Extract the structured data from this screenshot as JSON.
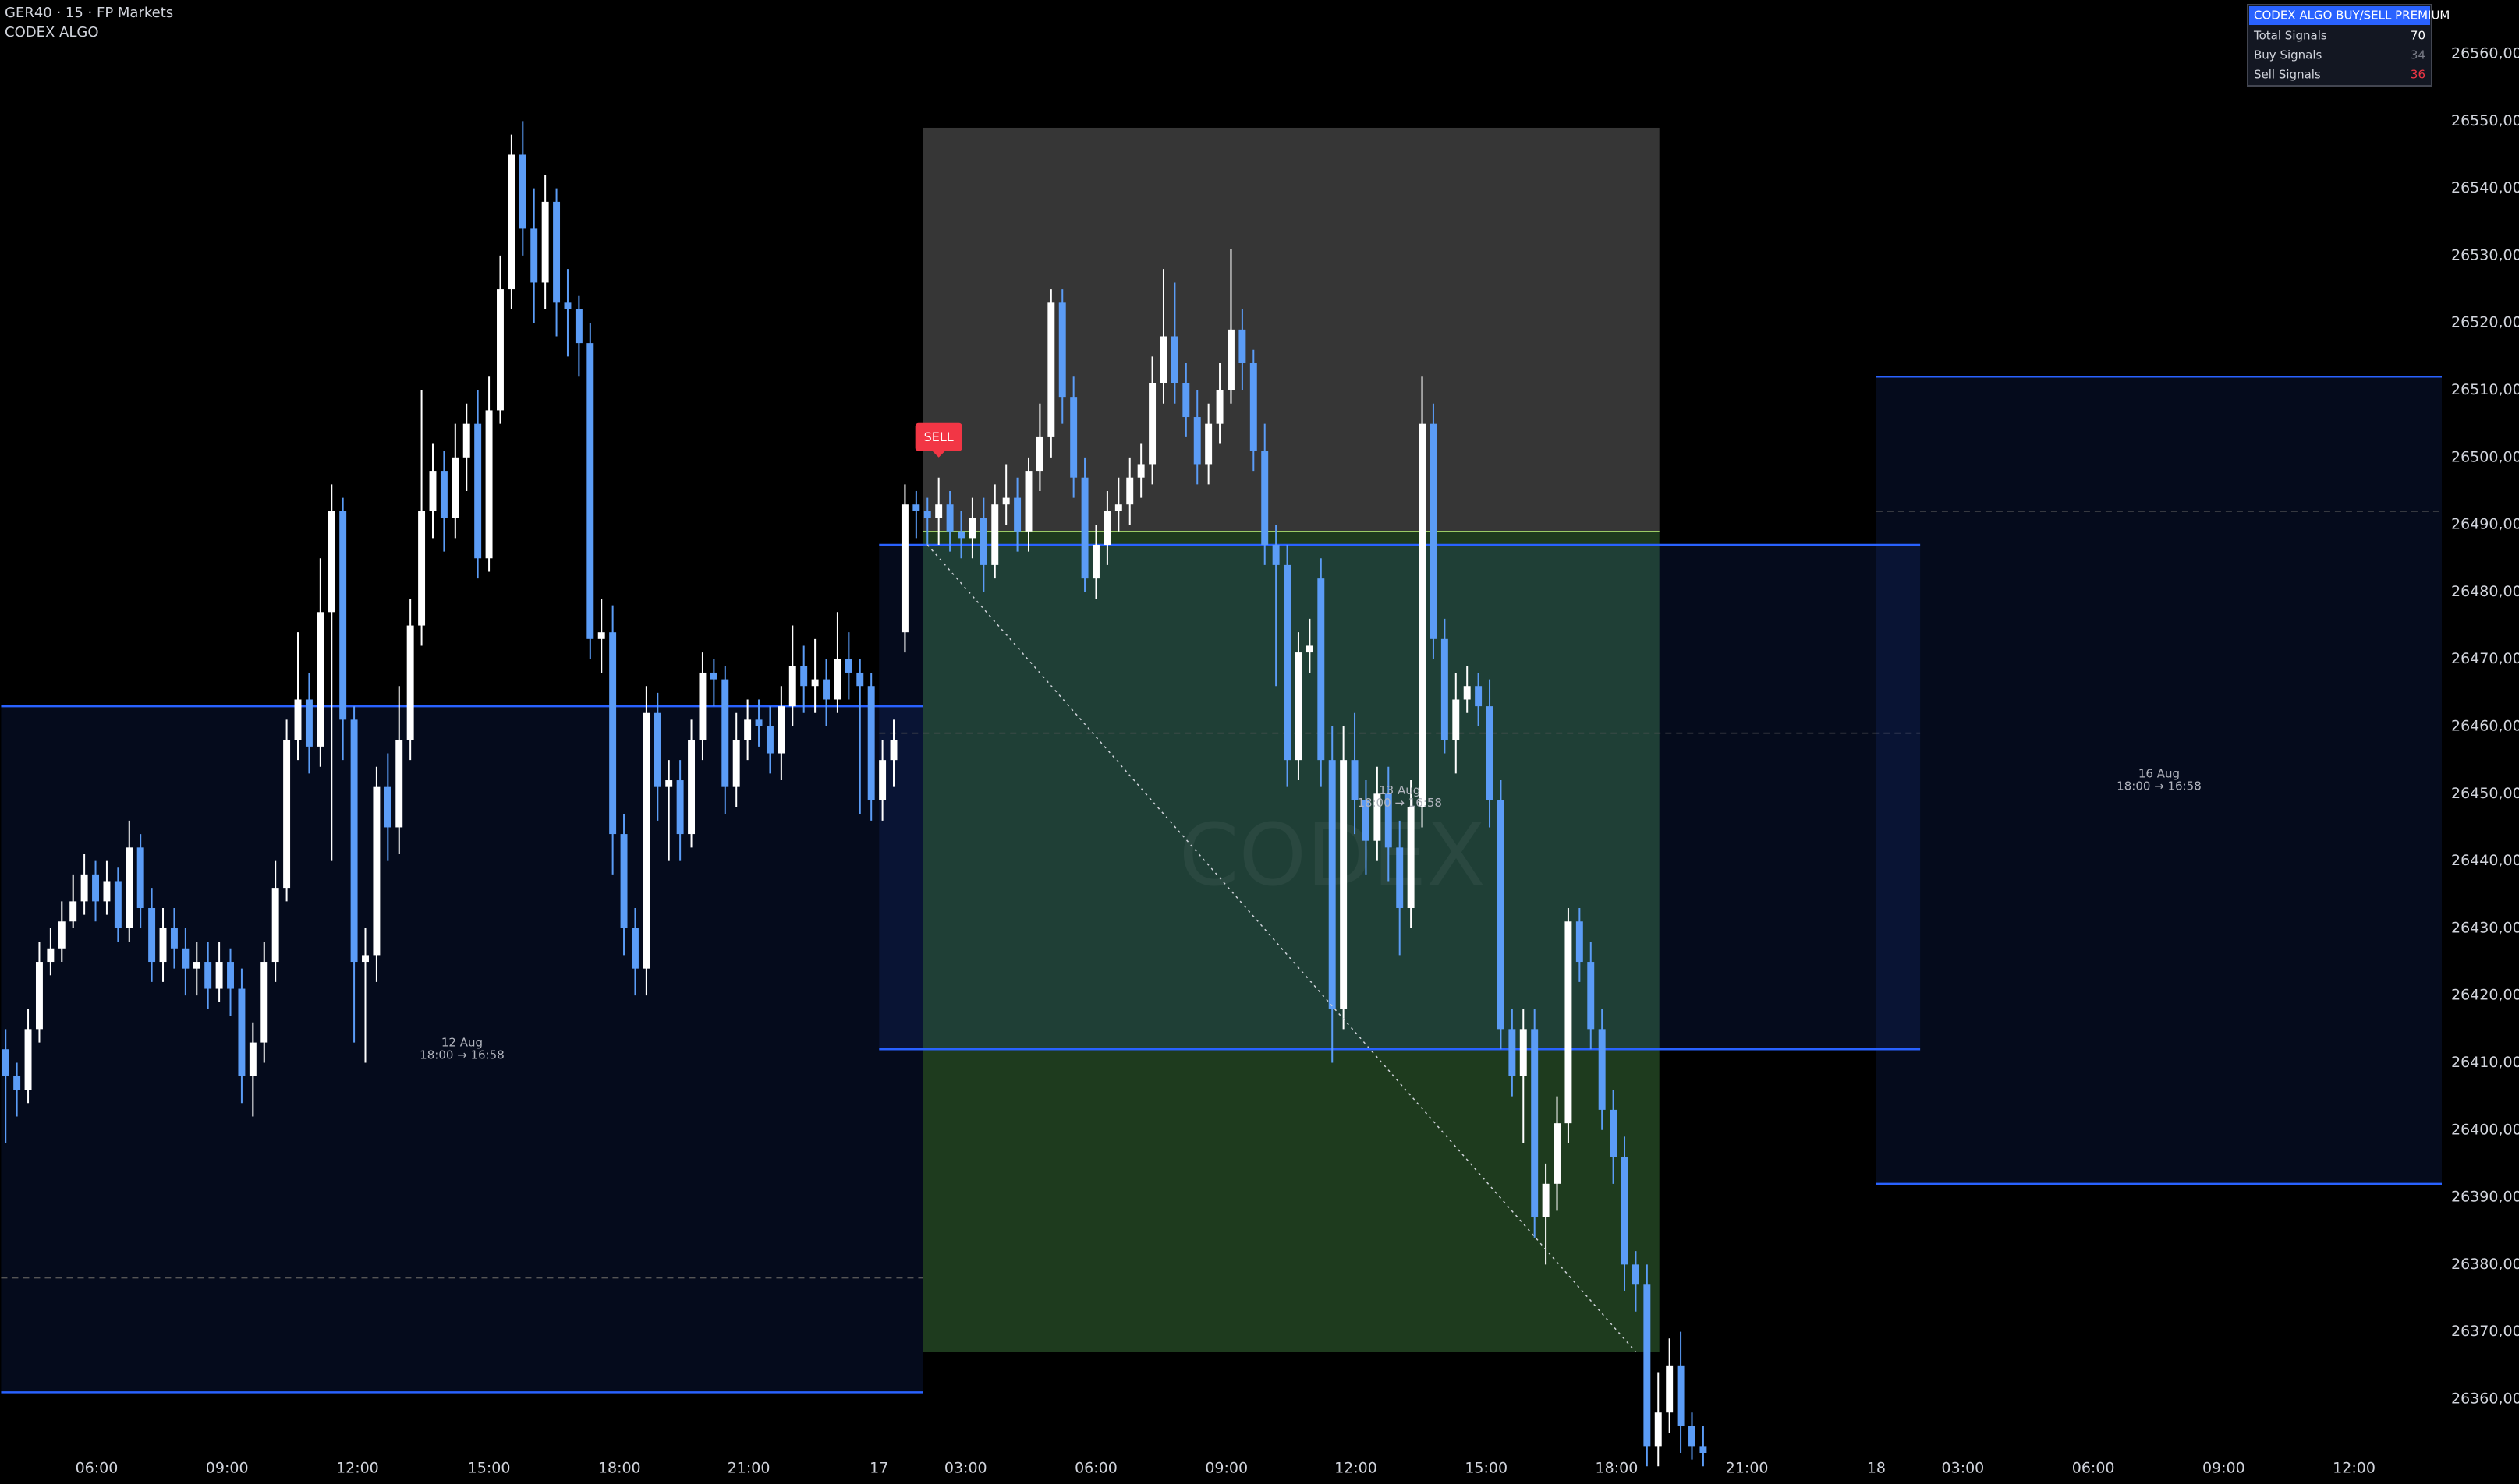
{
  "chart_data": {
    "type": "candlestick",
    "title": "GER40 · 15 · FP Markets",
    "subtitle": "CODEX ALGO",
    "watermark": "CODEX",
    "up_color": "#ffffff",
    "down_color": "#5b9cf6",
    "grid": false,
    "xlim": [
      -0.5,
      216.7
    ],
    "ylim": [
      26352,
      26568
    ],
    "xticks": [
      {
        "value": 8.1,
        "label": "06:00"
      },
      {
        "value": 19.7,
        "label": "09:00"
      },
      {
        "value": 31.3,
        "label": "12:00"
      },
      {
        "value": 43,
        "label": "15:00"
      },
      {
        "value": 54.6,
        "label": "18:00"
      },
      {
        "value": 66.1,
        "label": "21:00"
      },
      {
        "value": 77.7,
        "label": "17"
      },
      {
        "value": 85.4,
        "label": "03:00"
      },
      {
        "value": 97,
        "label": "06:00"
      },
      {
        "value": 108.6,
        "label": "09:00"
      },
      {
        "value": 120.1,
        "label": "12:00"
      },
      {
        "value": 131.7,
        "label": "15:00"
      },
      {
        "value": 143.3,
        "label": "18:00"
      },
      {
        "value": 154.9,
        "label": "21:00"
      },
      {
        "value": 166.4,
        "label": "18"
      },
      {
        "value": 174.1,
        "label": "03:00"
      },
      {
        "value": 185.7,
        "label": "06:00"
      },
      {
        "value": 197.3,
        "label": "09:00"
      },
      {
        "value": 208.9,
        "label": "12:00"
      }
    ],
    "yticks": [
      {
        "value": 26360,
        "label": "26360,00"
      },
      {
        "value": 26370,
        "label": "26370,00"
      },
      {
        "value": 26380,
        "label": "26380,00"
      },
      {
        "value": 26390,
        "label": "26390,00"
      },
      {
        "value": 26400,
        "label": "26400,00"
      },
      {
        "value": 26410,
        "label": "26410,00"
      },
      {
        "value": 26420,
        "label": "26420,00"
      },
      {
        "value": 26430,
        "label": "26430,00"
      },
      {
        "value": 26440,
        "label": "26440,00"
      },
      {
        "value": 26450,
        "label": "26450,00"
      },
      {
        "value": 26460,
        "label": "26460,00"
      },
      {
        "value": 26470,
        "label": "26470,00"
      },
      {
        "value": 26480,
        "label": "26480,00"
      },
      {
        "value": 26490,
        "label": "26490,00"
      },
      {
        "value": 26500,
        "label": "26500,00"
      },
      {
        "value": 26510,
        "label": "26510,00"
      },
      {
        "value": 26520,
        "label": "26520,00"
      },
      {
        "value": 26530,
        "label": "26530,00"
      },
      {
        "value": 26540,
        "label": "26540,00"
      },
      {
        "value": 26550,
        "label": "26550,00"
      },
      {
        "value": 26560,
        "label": "26560,00"
      }
    ],
    "open": [
      26412,
      26408,
      26406,
      26415,
      26425,
      26427,
      26431,
      26434,
      26438,
      26434,
      26437,
      26430,
      26442,
      26433,
      26425,
      26430,
      26427,
      26424,
      26425,
      26421,
      26425,
      26421,
      26408,
      26413,
      26425,
      26436,
      26458,
      26464,
      26457,
      26477,
      26492,
      26461,
      26425,
      26426,
      26451,
      26445,
      26458,
      26475,
      26492,
      26498,
      26491,
      26500,
      26505,
      26485,
      26507,
      26525,
      26545,
      26534,
      26526,
      26538,
      26523,
      26522,
      26517,
      26473,
      26474,
      26444,
      26430,
      26424,
      26462,
      26451,
      26452,
      26444,
      26458,
      26468,
      26467,
      26451,
      26458,
      26461,
      26460,
      26456,
      26463,
      26469,
      26466,
      26467,
      26464,
      26470,
      26468,
      26466,
      26449,
      26455,
      26474,
      26493,
      26492,
      26491,
      26493,
      26489,
      26488,
      26491,
      26484,
      26493,
      26494,
      26489,
      26498,
      26503,
      26523,
      26509,
      26497,
      26482,
      26487,
      26492,
      26493,
      26497,
      26499,
      26511,
      26518,
      26511,
      26506,
      26499,
      26505,
      26510,
      26519,
      26514,
      26501,
      26487,
      26484,
      26455,
      26471,
      26482,
      26455,
      26418,
      26455,
      26449,
      26443,
      26450,
      26442,
      26433,
      26448,
      26505,
      26473,
      26458,
      26464,
      26466,
      26463,
      26449,
      26415,
      26408,
      26415,
      26387,
      26392,
      26401,
      26431,
      26425,
      26415,
      26403,
      26396,
      26380,
      26377,
      26353,
      26358,
      26365,
      26356,
      26353
    ],
    "high": [
      26415,
      26410,
      26418,
      26428,
      26430,
      26434,
      26438,
      26441,
      26440,
      26440,
      26439,
      26446,
      26444,
      26436,
      26433,
      26433,
      26430,
      26428,
      26428,
      26428,
      26427,
      26424,
      26416,
      26428,
      26440,
      26461,
      26474,
      26468,
      26485,
      26496,
      26494,
      26463,
      26430,
      26454,
      26456,
      26466,
      26479,
      26510,
      26502,
      26501,
      26505,
      26508,
      26510,
      26512,
      26530,
      26548,
      26550,
      26540,
      26542,
      26540,
      26528,
      26524,
      26520,
      26479,
      26478,
      26447,
      26433,
      26466,
      26465,
      26455,
      26455,
      26461,
      26471,
      26470,
      26469,
      26462,
      26464,
      26464,
      26463,
      26466,
      26475,
      26472,
      26473,
      26470,
      26477,
      26474,
      26470,
      26468,
      26458,
      26461,
      26496,
      26495,
      26494,
      26497,
      26495,
      26492,
      26494,
      26494,
      26496,
      26499,
      26497,
      26500,
      26508,
      26525,
      26525,
      26512,
      26500,
      26490,
      26495,
      26497,
      26500,
      26502,
      26515,
      26528,
      26526,
      26514,
      26510,
      26508,
      26514,
      26531,
      26522,
      26516,
      26505,
      26490,
      26487,
      26474,
      26476,
      26485,
      26460,
      26460,
      26462,
      26452,
      26454,
      26454,
      26446,
      26452,
      26512,
      26508,
      26476,
      26468,
      26469,
      26468,
      26467,
      26452,
      26418,
      26418,
      26418,
      26395,
      26405,
      26433,
      26433,
      26428,
      26418,
      26406,
      26399,
      26382,
      26380,
      26364,
      26369,
      26370,
      26358,
      26356
    ],
    "low": [
      26398,
      26402,
      26404,
      26413,
      26423,
      26425,
      26430,
      26432,
      26431,
      26432,
      26428,
      26428,
      26430,
      26422,
      26422,
      26424,
      26420,
      26420,
      26418,
      26419,
      26417,
      26404,
      26402,
      26410,
      26422,
      26434,
      26455,
      26453,
      26454,
      26440,
      26455,
      26413,
      26410,
      26422,
      26440,
      26441,
      26455,
      26472,
      26488,
      26486,
      26488,
      26495,
      26482,
      26483,
      26505,
      26522,
      26530,
      26520,
      26522,
      26518,
      26515,
      26512,
      26470,
      26468,
      26438,
      26426,
      26420,
      26420,
      26446,
      26440,
      26440,
      26442,
      26455,
      26463,
      26447,
      26448,
      26455,
      26457,
      26453,
      26452,
      26460,
      26462,
      26462,
      26460,
      26462,
      26464,
      26447,
      26446,
      26446,
      26451,
      26471,
      26488,
      26487,
      26487,
      26486,
      26485,
      26485,
      26480,
      26482,
      26490,
      26486,
      26486,
      26495,
      26500,
      26505,
      26494,
      26480,
      26479,
      26484,
      26489,
      26490,
      26494,
      26496,
      26508,
      26508,
      26503,
      26496,
      26496,
      26502,
      26508,
      26510,
      26498,
      26484,
      26466,
      26451,
      26452,
      26468,
      26451,
      26410,
      26415,
      26444,
      26438,
      26440,
      26437,
      26426,
      26430,
      26445,
      26470,
      26456,
      26453,
      26462,
      26460,
      26445,
      26412,
      26405,
      26398,
      26384,
      26380,
      26388,
      26398,
      26422,
      26412,
      26400,
      26392,
      26376,
      26373,
      26350,
      26350,
      26355,
      26352,
      26351,
      26350
    ],
    "close": [
      26408,
      26406,
      26415,
      26425,
      26427,
      26431,
      26434,
      26438,
      26434,
      26437,
      26430,
      26442,
      26433,
      26425,
      26430,
      26427,
      26424,
      26425,
      26421,
      26425,
      26421,
      26408,
      26413,
      26425,
      26436,
      26458,
      26464,
      26457,
      26477,
      26492,
      26461,
      26425,
      26426,
      26451,
      26445,
      26458,
      26475,
      26492,
      26498,
      26491,
      26500,
      26505,
      26485,
      26507,
      26525,
      26545,
      26534,
      26526,
      26538,
      26523,
      26522,
      26517,
      26473,
      26474,
      26444,
      26430,
      26424,
      26462,
      26451,
      26452,
      26444,
      26458,
      26468,
      26467,
      26451,
      26458,
      26461,
      26460,
      26456,
      26463,
      26469,
      26466,
      26467,
      26464,
      26470,
      26468,
      26466,
      26449,
      26455,
      26458,
      26493,
      26492,
      26491,
      26493,
      26489,
      26488,
      26491,
      26484,
      26493,
      26494,
      26489,
      26498,
      26503,
      26523,
      26509,
      26497,
      26482,
      26487,
      26492,
      26493,
      26497,
      26499,
      26511,
      26518,
      26511,
      26506,
      26499,
      26505,
      26510,
      26519,
      26514,
      26501,
      26487,
      26484,
      26455,
      26471,
      26472,
      26455,
      26418,
      26455,
      26449,
      26443,
      26450,
      26442,
      26433,
      26448,
      26505,
      26473,
      26458,
      26464,
      26466,
      26463,
      26449,
      26415,
      26408,
      26415,
      26387,
      26392,
      26401,
      26431,
      26425,
      26415,
      26403,
      26396,
      26380,
      26377,
      26353,
      26358,
      26365,
      26356,
      26353,
      26352
    ],
    "sessions": [
      {
        "date": "12 Aug",
        "hours": "18:00 → 16:58",
        "x": [
          -0.4,
          81.6
        ],
        "high": 26463,
        "low": 26361,
        "dashed": 26378
      },
      {
        "date": "13 Aug",
        "hours": "18:00 → 16:58",
        "x": [
          77.7,
          170.3
        ],
        "high": 26487,
        "low": 26412,
        "dashed": 26459
      },
      {
        "date": "16 Aug",
        "hours": "18:00 → 16:58",
        "x": [
          166.4,
          216.7
        ],
        "high": 26512,
        "low": 26392,
        "dashed": 26492
      }
    ],
    "position": {
      "x": [
        81.6,
        147.1
      ],
      "stop": 26549,
      "entry": 26489,
      "target": 26367
    },
    "trend_line": {
      "x": [
        82,
        145
      ],
      "y": [
        26487,
        26367
      ]
    },
    "signal": {
      "label": "SELL",
      "index": 83,
      "price": 26497
    }
  },
  "table": {
    "title": "CODEX ALGO BUY/SELL PREMIUM",
    "rows": [
      [
        "Total Signals",
        70
      ],
      [
        "Buy Signals",
        34
      ],
      [
        "Sell Signals",
        36
      ]
    ]
  }
}
